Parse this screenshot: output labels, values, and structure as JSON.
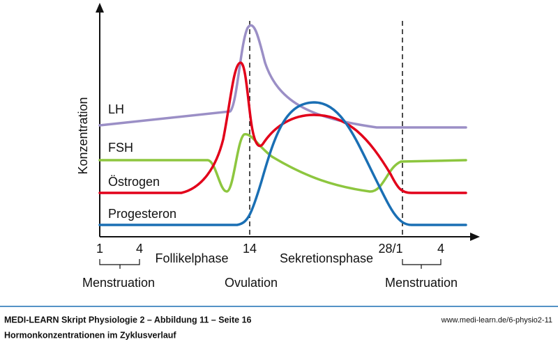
{
  "axis": {
    "y_label": "Konzentration"
  },
  "curves": [
    {
      "label": "LH",
      "color": "#9b8fc6"
    },
    {
      "label": "FSH",
      "color": "#8dc63f"
    },
    {
      "label": "Östrogen",
      "color": "#e2001a"
    },
    {
      "label": "Progesteron",
      "color": "#1a6fb4"
    }
  ],
  "x_axis": {
    "ticks": [
      "1",
      "4",
      "14",
      "28/1",
      "4"
    ],
    "phases": [
      "Follikelphase",
      "Sekretionsphase"
    ],
    "events": [
      "Menstruation",
      "Ovulation",
      "Menstruation"
    ]
  },
  "footer": {
    "source": "MEDI-LEARN Skript Physiologie 2 – Abbildung 11 – Seite 16",
    "url": "www.medi-learn.de/6-physio2-11",
    "caption": "Hormonkonzentrationen im Zyklusverlauf"
  }
}
